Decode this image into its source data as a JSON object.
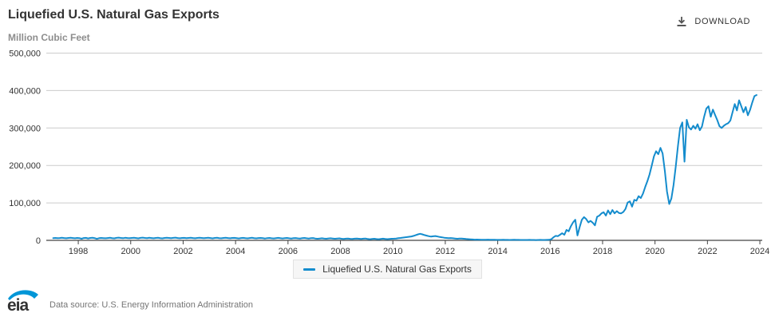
{
  "header": {
    "title": "Liquefied U.S. Natural Gas Exports",
    "subtitle": "Million Cubic Feet",
    "download_label": "DOWNLOAD"
  },
  "legend": {
    "label": "Liquefied U.S. Natural Gas Exports"
  },
  "footer": {
    "logo_text": "eia",
    "source_text": "Data source: U.S. Energy Information Administration"
  },
  "colors": {
    "line": "#148ccd",
    "logo_blue": "#0096d7",
    "grid": "#cccccc",
    "axis": "#444444",
    "text_dark": "#333333",
    "text_gray": "#8d8d8d"
  },
  "chart_data": {
    "type": "line",
    "title": "Liquefied U.S. Natural Gas Exports",
    "xlabel": "",
    "ylabel": "Million Cubic Feet",
    "x_domain": [
      1996.78,
      2024.09
    ],
    "y_domain": [
      0,
      500000
    ],
    "x_ticks": [
      1998,
      2000,
      2002,
      2004,
      2006,
      2008,
      2010,
      2012,
      2014,
      2016,
      2018,
      2020,
      2022,
      2024
    ],
    "y_ticks": [
      0,
      100000,
      200000,
      300000,
      400000,
      500000
    ],
    "grid": "horizontal",
    "legend_position": "bottom-center",
    "series": [
      {
        "name": "Liquefied U.S. Natural Gas Exports",
        "color": "#148ccd",
        "interval": "monthly",
        "start_year": 1997,
        "start_month": 1,
        "values": [
          6000,
          6500,
          5800,
          6200,
          7000,
          6100,
          5500,
          6300,
          6800,
          6200,
          5600,
          6400,
          5900,
          4200,
          6100,
          6600,
          5200,
          6300,
          6900,
          6000,
          4100,
          5800,
          6500,
          6000,
          5500,
          6200,
          6800,
          5900,
          5300,
          6600,
          7200,
          6400,
          5800,
          6900,
          6200,
          5700,
          6300,
          6900,
          6100,
          5400,
          6600,
          7300,
          6500,
          5900,
          6800,
          6200,
          5600,
          6500,
          6800,
          6000,
          5300,
          6400,
          7100,
          6300,
          5700,
          6600,
          7200,
          6100,
          5500,
          6300,
          6600,
          5800,
          6400,
          7000,
          6200,
          5600,
          6500,
          7100,
          6300,
          5700,
          6400,
          6900,
          6100,
          5400,
          6300,
          6800,
          6000,
          5500,
          6400,
          7000,
          6200,
          5600,
          6300,
          6700,
          5900,
          5200,
          6100,
          6600,
          5800,
          5300,
          6200,
          6800,
          6000,
          5400,
          6100,
          6500,
          5700,
          5000,
          5900,
          6400,
          5600,
          5100,
          6000,
          6600,
          5800,
          5200,
          5900,
          6300,
          5500,
          4800,
          5700,
          6200,
          5400,
          4900,
          5800,
          6400,
          5600,
          5000,
          5700,
          6100,
          4800,
          4200,
          5000,
          5500,
          4700,
          4200,
          5100,
          5600,
          4900,
          4300,
          5000,
          5400,
          4200,
          3600,
          4400,
          4900,
          4100,
          3600,
          4500,
          5000,
          4300,
          3700,
          4400,
          4800,
          3600,
          3000,
          3800,
          4300,
          3500,
          3000,
          3900,
          4400,
          3700,
          3100,
          3800,
          4200,
          4500,
          5000,
          5800,
          6500,
          7200,
          8000,
          8800,
          9500,
          10500,
          12000,
          14000,
          16000,
          17500,
          16000,
          14000,
          12500,
          11000,
          10000,
          10800,
          11500,
          10200,
          9000,
          8000,
          7000,
          6500,
          5800,
          6200,
          5500,
          4800,
          4200,
          4600,
          5000,
          4300,
          3600,
          3200,
          2800,
          2400,
          2000,
          2200,
          1900,
          1700,
          1600,
          1800,
          2000,
          1700,
          1500,
          1400,
          1300,
          1300,
          1200,
          1400,
          1300,
          1200,
          1100,
          1300,
          1500,
          1300,
          1200,
          1100,
          1000,
          1100,
          1000,
          1200,
          1100,
          1000,
          900,
          1100,
          1300,
          1100,
          1000,
          1200,
          1500,
          3000,
          8000,
          12000,
          11000,
          15000,
          19000,
          15000,
          28000,
          24000,
          38000,
          48000,
          55000,
          13000,
          35000,
          55000,
          62000,
          57000,
          48000,
          52000,
          47000,
          40000,
          63000,
          66000,
          72000,
          75000,
          66000,
          80000,
          70000,
          81000,
          72000,
          78000,
          73000,
          72000,
          76000,
          84000,
          101000,
          104000,
          90000,
          108000,
          106000,
          118000,
          113000,
          125000,
          142000,
          158000,
          176000,
          200000,
          224000,
          238000,
          230000,
          247000,
          232000,
          185000,
          130000,
          97000,
          112000,
          148000,
          198000,
          252000,
          300000,
          315000,
          210000,
          322000,
          302000,
          296000,
          306000,
          298000,
          310000,
          294000,
          304000,
          330000,
          352000,
          358000,
          330000,
          349000,
          335000,
          321000,
          305000,
          300000,
          306000,
          310000,
          313000,
          320000,
          342000,
          364000,
          347000,
          374000,
          358000,
          342000,
          356000,
          334000,
          348000,
          368000,
          385000,
          388000
        ]
      }
    ]
  }
}
